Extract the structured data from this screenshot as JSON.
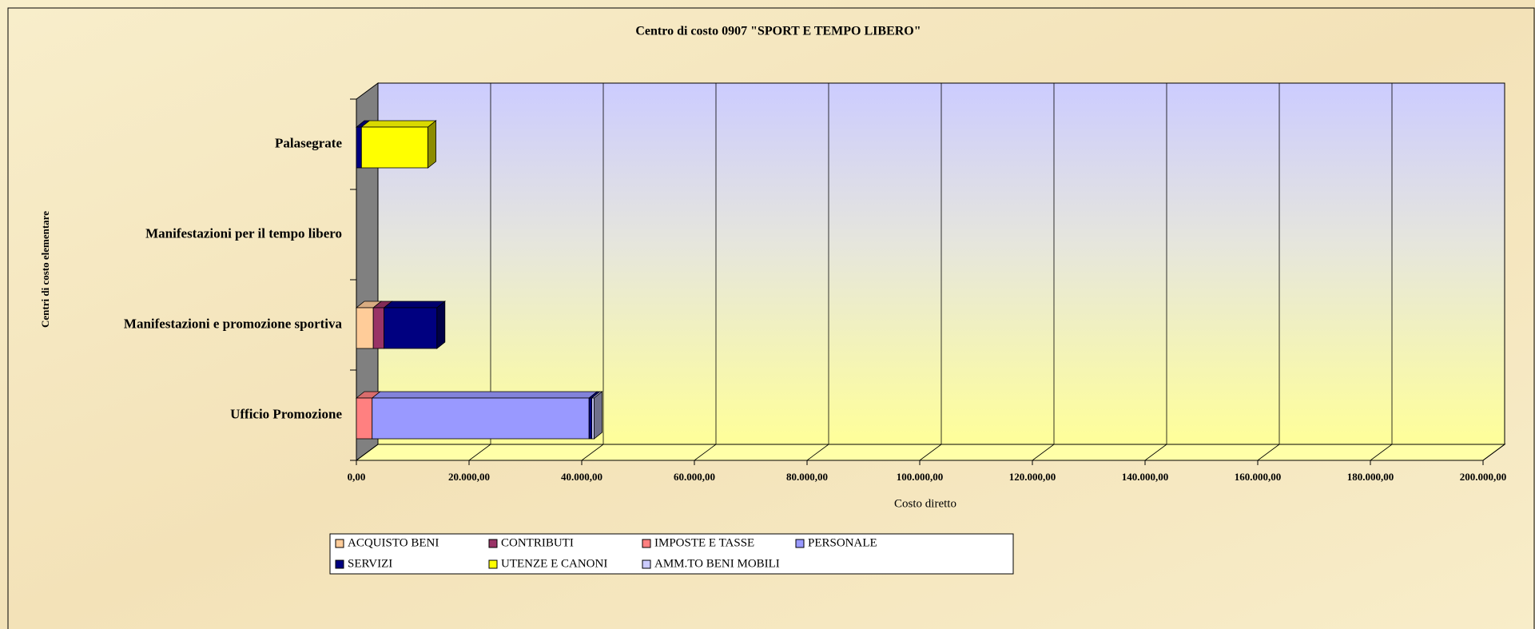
{
  "chart_data": {
    "type": "bar",
    "orientation": "horizontal",
    "stacked": true,
    "title": "Centro di costo 0907 \"SPORT E TEMPO LIBERO\"",
    "x_label": "Costo diretto",
    "y_label": "Centri di costo elementare",
    "categories": [
      "Ufficio Promozione",
      "Manifestazioni e promozione sportiva",
      "Manifestazioni per il tempo libero",
      "Palasegrate"
    ],
    "series": [
      {
        "name": "ACQUISTO BENI",
        "color": "#ffcc99",
        "values": [
          0,
          3000,
          0,
          0
        ]
      },
      {
        "name": "CONTRIBUTI",
        "color": "#993366",
        "values": [
          0,
          1900,
          0,
          0
        ]
      },
      {
        "name": "IMPOSTE E TASSE",
        "color": "#ff8080",
        "values": [
          2800,
          0,
          0,
          0
        ]
      },
      {
        "name": "PERSONALE",
        "color": "#9999ff",
        "values": [
          38500,
          0,
          0,
          0
        ]
      },
      {
        "name": "SERVIZI",
        "color": "#000080",
        "values": [
          500,
          9400,
          0,
          900
        ]
      },
      {
        "name": "UTENZE E CANONI",
        "color": "#ffff00",
        "values": [
          0,
          0,
          0,
          11800
        ]
      },
      {
        "name": "AMM.TO BENI MOBILI",
        "color": "#ccccff",
        "values": [
          400,
          0,
          0,
          0
        ]
      }
    ],
    "xlim": [
      0,
      200000
    ],
    "xticks": [
      {
        "value": 0,
        "label": "0,00"
      },
      {
        "value": 20000,
        "label": "20.000,00"
      },
      {
        "value": 40000,
        "label": "40.000,00"
      },
      {
        "value": 60000,
        "label": "60.000,00"
      },
      {
        "value": 80000,
        "label": "80.000,00"
      },
      {
        "value": 100000,
        "label": "100.000,00"
      },
      {
        "value": 120000,
        "label": "120.000,00"
      },
      {
        "value": 140000,
        "label": "140.000,00"
      },
      {
        "value": 160000,
        "label": "160.000,00"
      },
      {
        "value": 180000,
        "label": "180.000,00"
      },
      {
        "value": 200000,
        "label": "200.000,00"
      }
    ],
    "grid": true,
    "legend": "bottom"
  }
}
